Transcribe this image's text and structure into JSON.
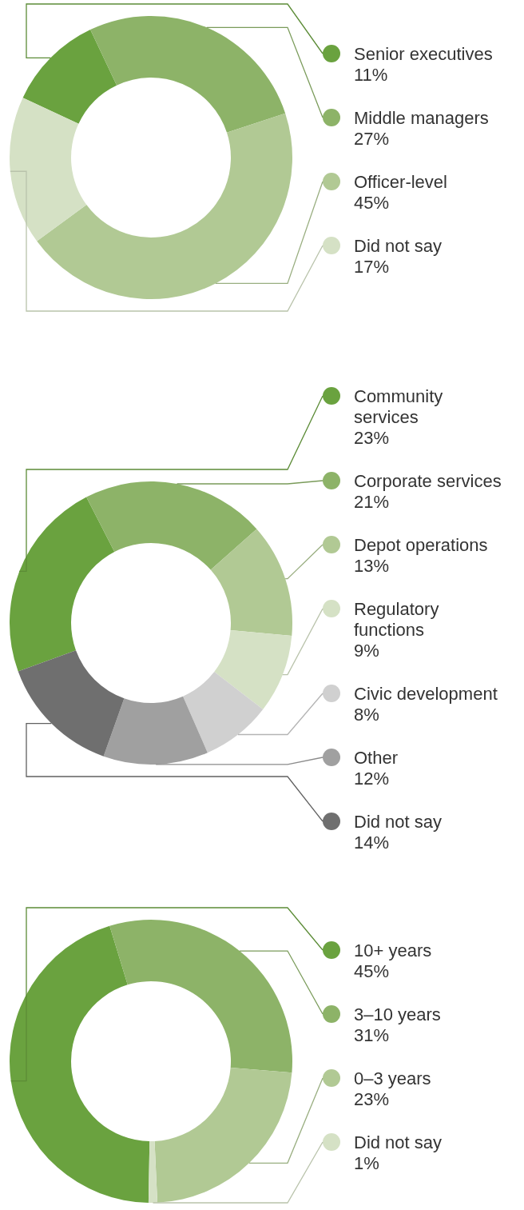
{
  "chart_data": [
    {
      "type": "donut",
      "categories": [
        "Senior executives",
        "Middle managers",
        "Officer-level",
        "Did not say"
      ],
      "values": [
        11,
        27,
        45,
        17
      ],
      "value_labels": [
        "11%",
        "27%",
        "45%",
        "17%"
      ],
      "colors": [
        "#6aa23f",
        "#8db368",
        "#b1c994",
        "#d5e1c5"
      ],
      "legend": "right"
    },
    {
      "type": "donut",
      "categories": [
        "Community services",
        "Corporate services",
        "Depot operations",
        "Regulatory functions",
        "Civic development",
        "Other",
        "Did not say"
      ],
      "values": [
        23,
        21,
        13,
        9,
        8,
        12,
        14
      ],
      "value_labels": [
        "23%",
        "21%",
        "13%",
        "9%",
        "8%",
        "12%",
        "14%"
      ],
      "colors": [
        "#6aa23f",
        "#8db368",
        "#b1c994",
        "#d5e1c5",
        "#d0d0d0",
        "#a0a0a0",
        "#6f6f6f"
      ],
      "legend": "right"
    },
    {
      "type": "donut",
      "categories": [
        "10+ years",
        "3–10 years",
        "0–3 years",
        "Did not say"
      ],
      "values": [
        45,
        31,
        23,
        1
      ],
      "value_labels": [
        "45%",
        "31%",
        "23%",
        "1%"
      ],
      "colors": [
        "#6aa23f",
        "#8db368",
        "#b1c994",
        "#d5e1c5"
      ],
      "legend": "right"
    }
  ]
}
